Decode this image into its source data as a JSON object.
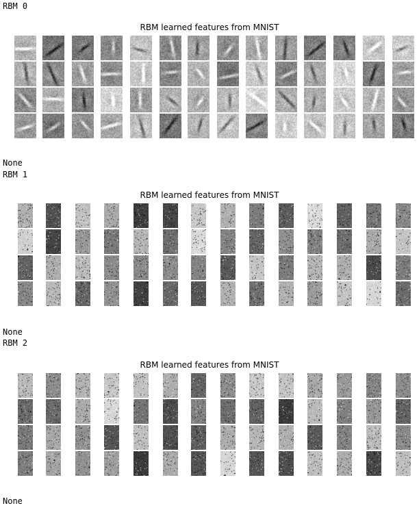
{
  "output": {
    "blocks": [
      {
        "label": "RBM 0",
        "figure_title": "RBM learned features from MNIST",
        "result": "None",
        "grid": {
          "rows": 4,
          "cols": 14,
          "kind": "digit"
        }
      },
      {
        "label": "RBM 1",
        "figure_title": "RBM learned features from MNIST",
        "result": "None",
        "grid": {
          "rows": 4,
          "cols": 14,
          "kind": "noise"
        }
      },
      {
        "label": "RBM 2",
        "figure_title": "RBM learned features from MNIST",
        "result": "None",
        "grid": {
          "rows": 4,
          "cols": 14,
          "kind": "noise"
        }
      }
    ]
  }
}
